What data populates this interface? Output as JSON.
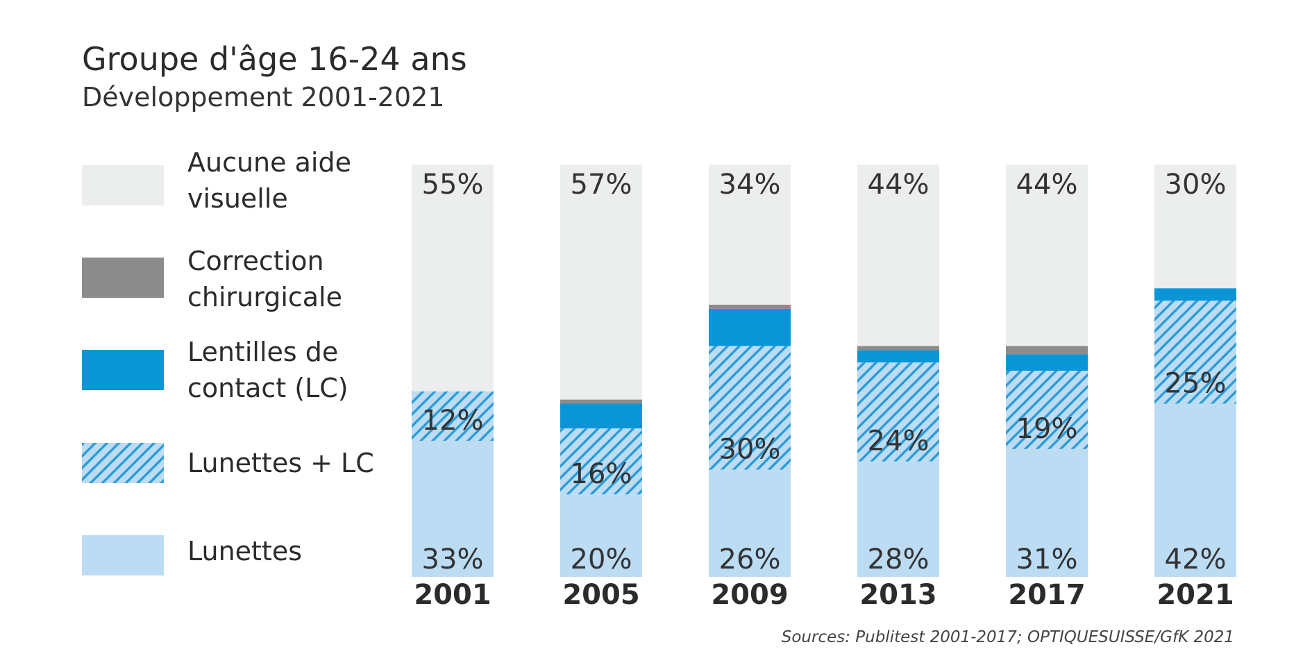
{
  "chart_data": {
    "type": "bar",
    "stacked": true,
    "title": "Groupe d'âge 16-24 ans",
    "subtitle": "Développement 2001-2021",
    "categories": [
      "2001",
      "2005",
      "2009",
      "2013",
      "2017",
      "2021"
    ],
    "series": [
      {
        "name": "Lunettes",
        "color": "#bcdcf4",
        "values": [
          33,
          20,
          26,
          28,
          31,
          42
        ]
      },
      {
        "name": "Lunettes + LC",
        "color": "#2a9bd8",
        "pattern": "hatch",
        "values": [
          12,
          16,
          30,
          24,
          19,
          25
        ]
      },
      {
        "name": "Lentilles de contact (LC)",
        "color": "#0a96d6",
        "values": [
          0,
          6,
          9,
          3,
          4,
          3
        ]
      },
      {
        "name": "Correction chirurgicale",
        "color": "#8c8c8c",
        "values": [
          0,
          1,
          1,
          1,
          2,
          0
        ]
      },
      {
        "name": "Aucune aide visuelle",
        "color": "#eceded",
        "values": [
          55,
          57,
          34,
          44,
          44,
          30
        ]
      }
    ],
    "data_labels": {
      "Lunettes": [
        "33%",
        "20%",
        "26%",
        "28%",
        "31%",
        "42%"
      ],
      "Lunettes + LC": [
        "12%",
        "16%",
        "30%",
        "24%",
        "19%",
        "25%"
      ],
      "Aucune aide visuelle": [
        "55%",
        "57%",
        "34%",
        "44%",
        "44%",
        "30%"
      ]
    },
    "ylim": [
      0,
      100
    ],
    "legend_position": "left",
    "grid": false
  },
  "legend": [
    {
      "line1": "Aucune aide",
      "line2": "visuelle",
      "color": "#eceded"
    },
    {
      "line1": "Correction",
      "line2": "chirurgicale",
      "color": "#8c8c8c"
    },
    {
      "line1": "Lentilles de",
      "line2": "contact (LC)",
      "color": "#0a96d6"
    },
    {
      "line1": "Lunettes + LC",
      "line2": "",
      "color": "hatch"
    },
    {
      "line1": "Lunettes",
      "line2": "",
      "color": "#bcdcf4"
    }
  ],
  "source": "Sources: Publitest 2001-2017; OPTIQUESUISSE/GfK 2021"
}
